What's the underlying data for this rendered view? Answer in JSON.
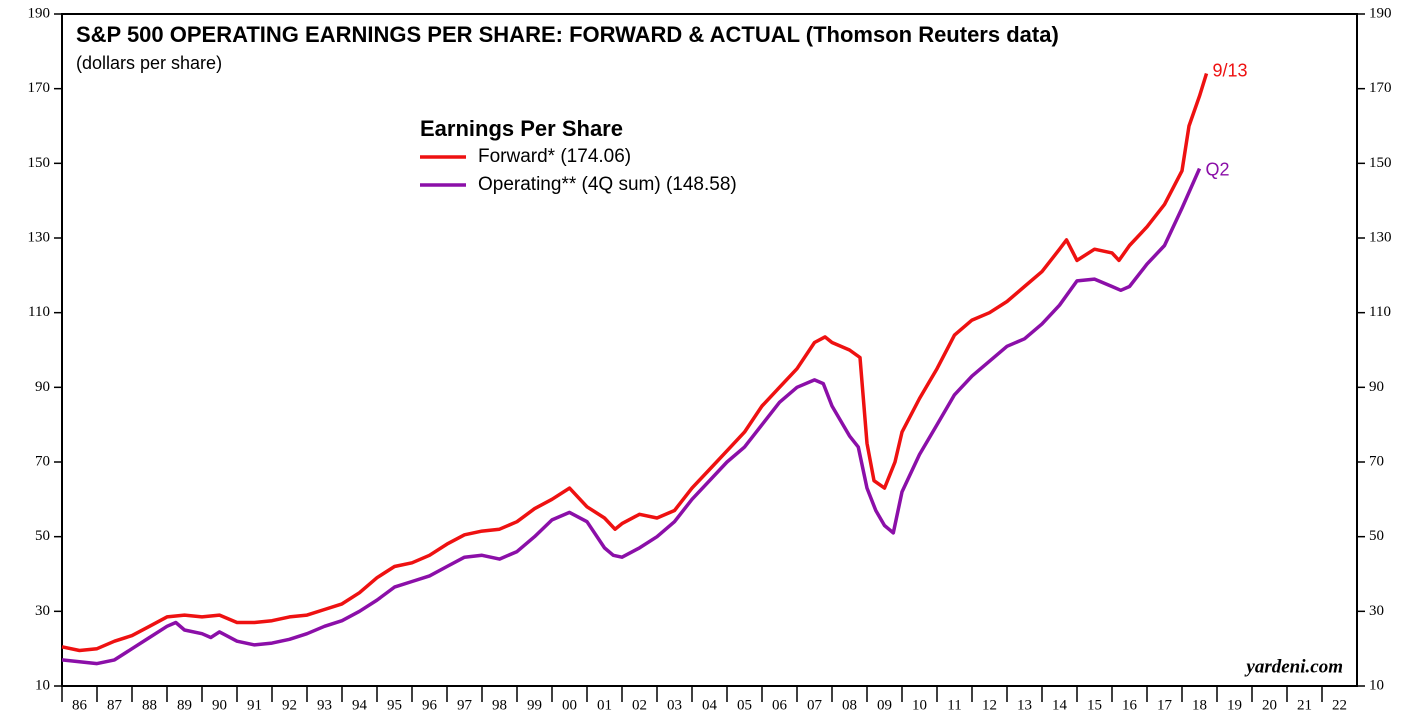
{
  "chart_data": {
    "type": "line",
    "title": "S&P 500 OPERATING EARNINGS PER SHARE: FORWARD & ACTUAL (Thomson Reuters data)",
    "subtitle": "(dollars per share)",
    "legend_title": "Earnings Per Share",
    "source": "yardeni.com",
    "annotations": [
      "9/13",
      "Q2"
    ],
    "xlim": [
      1986,
      2023
    ],
    "xticks": [
      {
        "value": 1986,
        "label": "86"
      },
      {
        "value": 1987,
        "label": "87"
      },
      {
        "value": 1988,
        "label": "88"
      },
      {
        "value": 1989,
        "label": "89"
      },
      {
        "value": 1990,
        "label": "90"
      },
      {
        "value": 1991,
        "label": "91"
      },
      {
        "value": 1992,
        "label": "92"
      },
      {
        "value": 1993,
        "label": "93"
      },
      {
        "value": 1994,
        "label": "94"
      },
      {
        "value": 1995,
        "label": "95"
      },
      {
        "value": 1996,
        "label": "96"
      },
      {
        "value": 1997,
        "label": "97"
      },
      {
        "value": 1998,
        "label": "98"
      },
      {
        "value": 1999,
        "label": "99"
      },
      {
        "value": 2000,
        "label": "00"
      },
      {
        "value": 2001,
        "label": "01"
      },
      {
        "value": 2002,
        "label": "02"
      },
      {
        "value": 2003,
        "label": "03"
      },
      {
        "value": 2004,
        "label": "04"
      },
      {
        "value": 2005,
        "label": "05"
      },
      {
        "value": 2006,
        "label": "06"
      },
      {
        "value": 2007,
        "label": "07"
      },
      {
        "value": 2008,
        "label": "08"
      },
      {
        "value": 2009,
        "label": "09"
      },
      {
        "value": 2010,
        "label": "10"
      },
      {
        "value": 2011,
        "label": "11"
      },
      {
        "value": 2012,
        "label": "12"
      },
      {
        "value": 2013,
        "label": "13"
      },
      {
        "value": 2014,
        "label": "14"
      },
      {
        "value": 2015,
        "label": "15"
      },
      {
        "value": 2016,
        "label": "16"
      },
      {
        "value": 2017,
        "label": "17"
      },
      {
        "value": 2018,
        "label": "18"
      },
      {
        "value": 2019,
        "label": "19"
      },
      {
        "value": 2020,
        "label": "20"
      },
      {
        "value": 2021,
        "label": "21"
      },
      {
        "value": 2022,
        "label": "22"
      }
    ],
    "ylim": [
      10,
      190
    ],
    "yticks": [
      10,
      30,
      50,
      70,
      90,
      110,
      130,
      150,
      170,
      190
    ],
    "series": [
      {
        "name": "Forward* (174.06)",
        "color": "#ee1111",
        "x": [
          1986,
          1986.5,
          1987,
          1987.5,
          1988,
          1988.5,
          1989,
          1989.5,
          1990,
          1990.5,
          1991,
          1991.5,
          1992,
          1992.5,
          1993,
          1993.5,
          1994,
          1994.5,
          1995,
          1995.5,
          1996,
          1996.5,
          1997,
          1997.5,
          1998,
          1998.5,
          1999,
          1999.5,
          2000,
          2000.5,
          2001,
          2001.5,
          2001.8,
          2002,
          2002.5,
          2003,
          2003.5,
          2004,
          2004.5,
          2005,
          2005.5,
          2006,
          2006.5,
          2007,
          2007.5,
          2007.8,
          2008,
          2008.5,
          2008.8,
          2009,
          2009.2,
          2009.5,
          2009.8,
          2010,
          2010.5,
          2011,
          2011.5,
          2012,
          2012.5,
          2013,
          2013.5,
          2014,
          2014.5,
          2014.7,
          2015,
          2015.5,
          2016,
          2016.2,
          2016.5,
          2017,
          2017.5,
          2018,
          2018.2,
          2018.5,
          2018.7
        ],
        "values": [
          20.5,
          19.5,
          20,
          22,
          23.5,
          26,
          28.5,
          29,
          28.5,
          29,
          27,
          27,
          27.5,
          28.5,
          29,
          30.5,
          32,
          35,
          39,
          42,
          43,
          45,
          48,
          50.5,
          51.5,
          52,
          54,
          57.5,
          60,
          63,
          58,
          55,
          52,
          53.5,
          56,
          55,
          57,
          63,
          68,
          73,
          78,
          85,
          90,
          95,
          102,
          103.5,
          102,
          100,
          98,
          75,
          65,
          63,
          70,
          78,
          87,
          95,
          104,
          108,
          110,
          113,
          117,
          121,
          127,
          129.5,
          124,
          127,
          126,
          124,
          128,
          133,
          139,
          148,
          160,
          168,
          174.06
        ]
      },
      {
        "name": "Operating** (4Q sum) (148.58)",
        "color": "#8b0fa8",
        "x": [
          1986,
          1986.5,
          1987,
          1987.5,
          1988,
          1988.5,
          1989,
          1989.25,
          1989.5,
          1990,
          1990.25,
          1990.5,
          1991,
          1991.5,
          1992,
          1992.5,
          1993,
          1993.5,
          1994,
          1994.5,
          1995,
          1995.5,
          1996,
          1996.5,
          1997,
          1997.5,
          1998,
          1998.5,
          1999,
          1999.5,
          2000,
          2000.5,
          2001,
          2001.5,
          2001.75,
          2002,
          2002.5,
          2003,
          2003.5,
          2004,
          2004.5,
          2005,
          2005.5,
          2006,
          2006.5,
          2007,
          2007.5,
          2007.75,
          2008,
          2008.5,
          2008.75,
          2009,
          2009.25,
          2009.5,
          2009.75,
          2010,
          2010.5,
          2011,
          2011.5,
          2012,
          2012.5,
          2013,
          2013.5,
          2014,
          2014.5,
          2015,
          2015.5,
          2016,
          2016.25,
          2016.5,
          2017,
          2017.5,
          2018,
          2018.5
        ],
        "values": [
          17,
          16.5,
          16,
          17,
          20,
          23,
          26,
          27,
          25,
          24,
          23,
          24.5,
          22,
          21,
          21.5,
          22.5,
          24,
          26,
          27.5,
          30,
          33,
          36.5,
          38,
          39.5,
          42,
          44.5,
          45,
          44,
          46,
          50,
          54.5,
          56.5,
          54,
          47,
          45,
          44.5,
          47,
          50,
          54,
          60,
          65,
          70,
          74,
          80,
          86,
          90,
          92,
          91,
          85,
          77,
          74,
          63,
          57,
          53,
          51,
          62,
          72,
          80,
          88,
          93,
          97,
          101,
          103,
          107,
          112,
          118.5,
          119,
          117,
          116,
          117,
          123,
          128,
          138,
          148.58
        ]
      }
    ]
  }
}
